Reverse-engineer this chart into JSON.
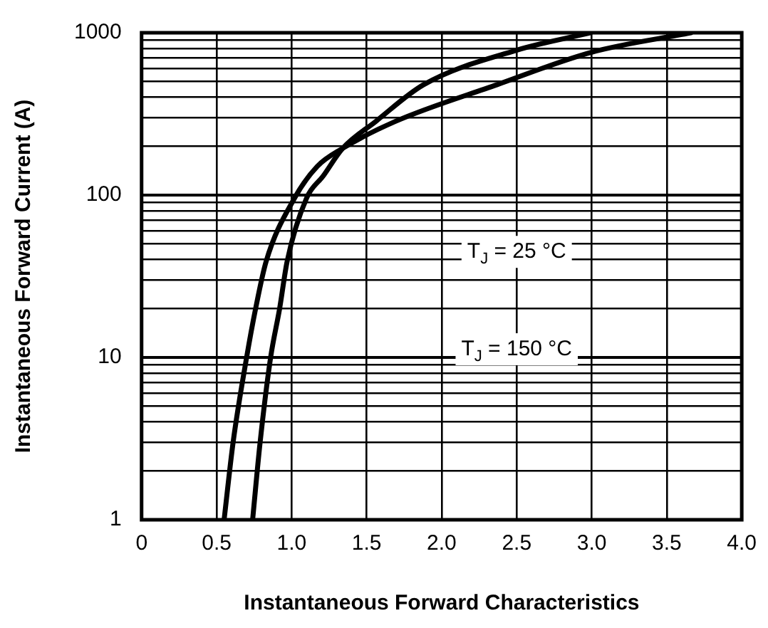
{
  "chart_data": {
    "type": "line",
    "xlabel": "Instantaneous Forward Characteristics",
    "ylabel": "Instantaneous Forward Current (A)",
    "log": "y",
    "grid": true,
    "legend": false,
    "marker": "none",
    "line_style": "solid",
    "xlim": [
      0,
      4
    ],
    "xticks": [
      0,
      {
        "value": 0.5,
        "label": "0.5"
      },
      {
        "value": 1,
        "label": "1.0"
      },
      {
        "value": 1.5,
        "label": "1.5"
      },
      {
        "value": 2,
        "label": "2.0"
      },
      {
        "value": 2.5,
        "label": "2.5"
      },
      {
        "value": 3,
        "label": "3.0"
      },
      {
        "value": 3.5,
        "label": "3.5"
      },
      {
        "value": 4,
        "label": "4.0"
      }
    ],
    "ylim": [
      1,
      1000
    ],
    "yticks": [
      1,
      {
        "value": 2,
        "label": null
      },
      {
        "value": 3,
        "label": null
      },
      {
        "value": 4,
        "label": null
      },
      {
        "value": 5,
        "label": null
      },
      {
        "value": 6,
        "label": null
      },
      {
        "value": 7,
        "label": null
      },
      {
        "value": 8,
        "label": null
      },
      {
        "value": 9,
        "label": null
      },
      10,
      {
        "value": 20,
        "label": null
      },
      {
        "value": 30,
        "label": null
      },
      {
        "value": 40,
        "label": null
      },
      {
        "value": 50,
        "label": null
      },
      {
        "value": 60,
        "label": null
      },
      {
        "value": 70,
        "label": null
      },
      {
        "value": 80,
        "label": null
      },
      {
        "value": 90,
        "label": null
      },
      100,
      {
        "value": 200,
        "label": null
      },
      {
        "value": 300,
        "label": null
      },
      {
        "value": 400,
        "label": null
      },
      {
        "value": 500,
        "label": null
      },
      {
        "value": 600,
        "label": null
      },
      {
        "value": 700,
        "label": null
      },
      {
        "value": 800,
        "label": null
      },
      {
        "value": 900,
        "label": null
      },
      1000
    ],
    "series": [
      {
        "color": "#000000",
        "x": [
          0.55,
          0.61,
          0.7,
          0.76,
          0.83,
          1.02,
          1.17,
          1.34,
          1.69,
          2.37,
          3.0,
          3.66
        ],
        "values": [
          1,
          3,
          10,
          20,
          39,
          96,
          150,
          194,
          284,
          479,
          759,
          1000
        ]
      },
      {
        "color": "#000000",
        "x": [
          0.74,
          0.79,
          0.86,
          0.92,
          0.97,
          1.1,
          1.21,
          1.34,
          1.56,
          1.88,
          2.49,
          2.99
        ],
        "values": [
          1,
          3,
          10,
          20,
          39,
          96,
          131,
          194,
          284,
          479,
          776,
          1000
        ]
      }
    ],
    "annotations": [
      "T$_{J}$ = 25 °C",
      "T$_{J}$ = 150 °C"
    ]
  }
}
